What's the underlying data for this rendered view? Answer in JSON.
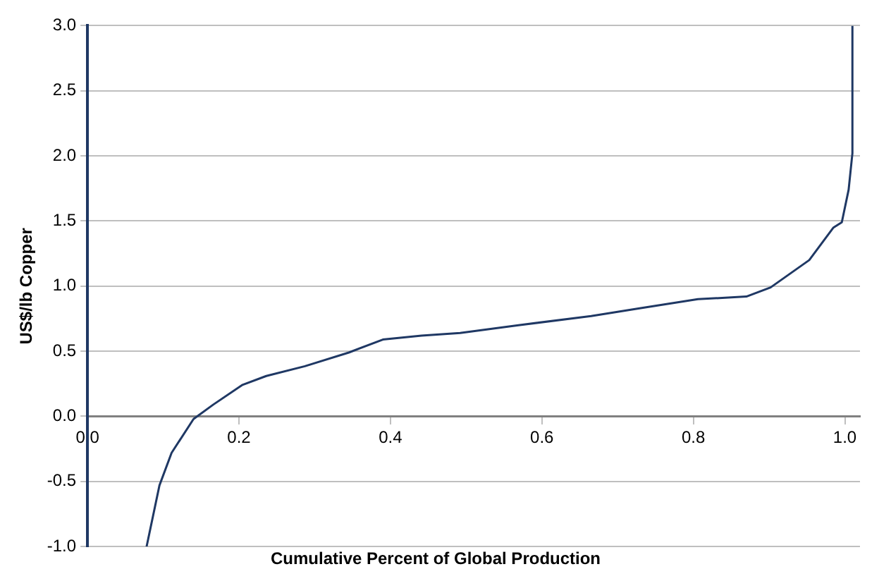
{
  "chart_data": {
    "type": "line",
    "xlabel": "Cumulative Percent of Global Production",
    "ylabel": "US$/lb Copper",
    "series": [
      {
        "color": "#1f3864",
        "x": [
          0.078,
          0.095,
          0.111,
          0.14,
          0.166,
          0.204,
          0.236,
          0.287,
          0.345,
          0.39,
          0.441,
          0.492,
          0.569,
          0.665,
          0.729,
          0.806,
          0.87,
          0.902,
          0.953,
          0.985,
          0.996,
          1.005,
          1.01,
          1.01
        ],
        "values": [
          -1.0,
          -0.53,
          -0.28,
          -0.02,
          0.09,
          0.24,
          0.31,
          0.385,
          0.49,
          0.59,
          0.62,
          0.64,
          0.7,
          0.77,
          0.83,
          0.9,
          0.92,
          0.99,
          1.2,
          1.45,
          1.49,
          1.74,
          2.02,
          3.0
        ]
      }
    ],
    "xlim": [
      0,
      1.02
    ],
    "xticks": [
      {
        "value": 0,
        "label": "0.0"
      },
      {
        "value": 0.2,
        "label": "0.2"
      },
      {
        "value": 0.4,
        "label": "0.4"
      },
      {
        "value": 0.6,
        "label": "0.6"
      },
      {
        "value": 0.8,
        "label": "0.8"
      },
      {
        "value": 1,
        "label": "1.0"
      }
    ],
    "ylim": [
      -1,
      3
    ],
    "yticks": [
      {
        "value": -1,
        "label": "-1.0"
      },
      {
        "value": -0.5,
        "label": "-0.5"
      },
      {
        "value": 0,
        "label": "0.0"
      },
      {
        "value": 0.5,
        "label": "0.5"
      },
      {
        "value": 1,
        "label": "1.0"
      },
      {
        "value": 1.5,
        "label": "1.5"
      },
      {
        "value": 2,
        "label": "2.0"
      },
      {
        "value": 2.5,
        "label": "2.5"
      },
      {
        "value": 3,
        "label": "3.0"
      }
    ],
    "grid": "y",
    "legend": false,
    "marker": "none",
    "line_style": "solid"
  }
}
